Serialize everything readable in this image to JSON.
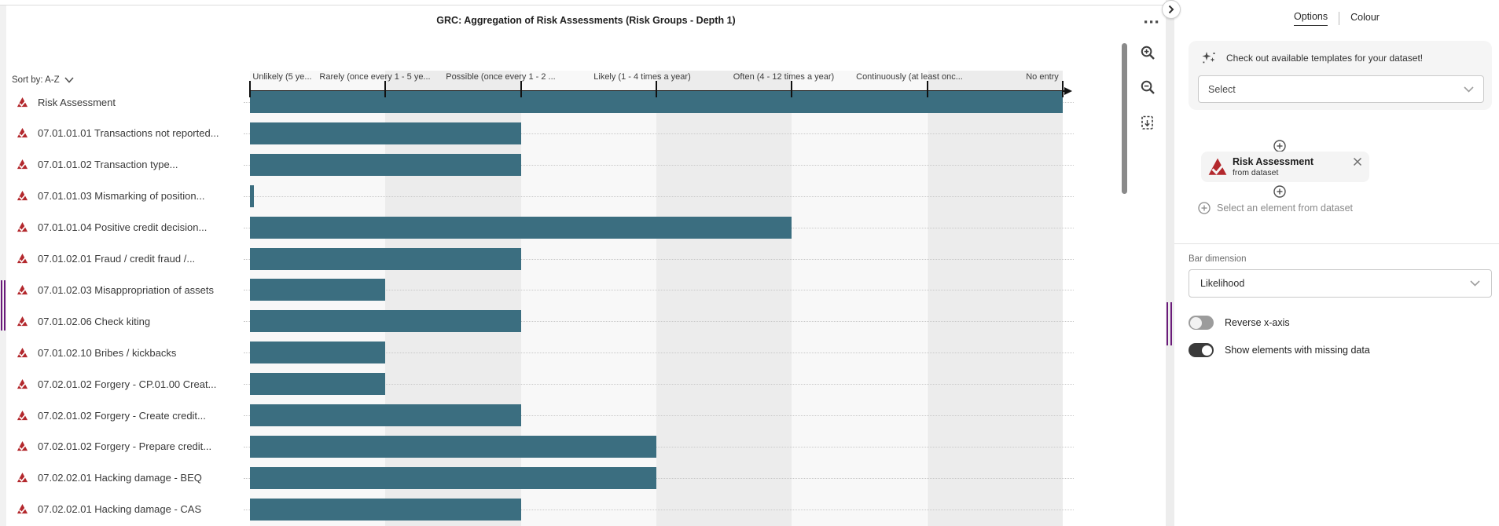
{
  "header": {
    "title": "GRC: Aggregation of Risk Assessments (Risk Groups - Depth 1)"
  },
  "sort": {
    "label": "Sort by: A-Z"
  },
  "chart_data": {
    "type": "bar",
    "orientation": "horizontal",
    "title": "GRC: Aggregation of Risk Assessments (Risk Groups - Depth 1)",
    "xlabel_dimension": "Likelihood",
    "x_axis_labels": [
      "Unlikely (5 ye...",
      "Rarely (once every 1 - 5 ye...",
      "Possible (once every 1 - 2 ...",
      "Likely (1 - 4 times a year)",
      "Often (4 - 12 times a year)",
      "Continuously (at least onc...",
      "No entry"
    ],
    "xlim": [
      0,
      6
    ],
    "grid": "dotted-horizontal",
    "categories": [
      "Risk Assessment",
      "07.01.01.01 Transactions not reported...",
      "07.01.01.02 Transaction type...",
      "07.01.01.03 Mismarking of position...",
      "07.01.01.04 Positive credit decision...",
      "07.01.02.01 Fraud / credit fraud /...",
      "07.01.02.03 Misappropriation of assets",
      "07.01.02.06 Check kiting",
      "07.01.02.10 Bribes / kickbacks",
      "07.02.01.02 Forgery - CP.01.00 Creat...",
      "07.02.01.02 Forgery - Create credit...",
      "07.02.01.02 Forgery - Prepare credit...",
      "07.02.02.01 Hacking damage - BEQ",
      "07.02.02.01 Hacking damage - CAS"
    ],
    "values": [
      6,
      2,
      2,
      0.03,
      4,
      2,
      1,
      2,
      1,
      1,
      2,
      3,
      3,
      2
    ],
    "bar_color": "#3b6e80"
  },
  "panel": {
    "tabs": [
      {
        "label": "Options",
        "active": true
      },
      {
        "label": "Colour",
        "active": false
      }
    ],
    "template_banner": {
      "text": "Check out available templates for your dataset!",
      "select_placeholder": "Select"
    },
    "dataset_element": {
      "name": "Risk Assessment",
      "subtitle": "from dataset"
    },
    "add_element_label": "Select an element from dataset",
    "bar_dimension": {
      "label": "Bar dimension",
      "value": "Likelihood"
    },
    "toggles": [
      {
        "label": "Reverse x-axis",
        "on": false
      },
      {
        "label": "Show elements with missing data",
        "on": true
      }
    ]
  },
  "colors": {
    "bar": "#3b6e80",
    "risk_icon_red": "#b3282d",
    "stripe_gray": "#ececec",
    "accent_purple": "#6a1b7a"
  }
}
